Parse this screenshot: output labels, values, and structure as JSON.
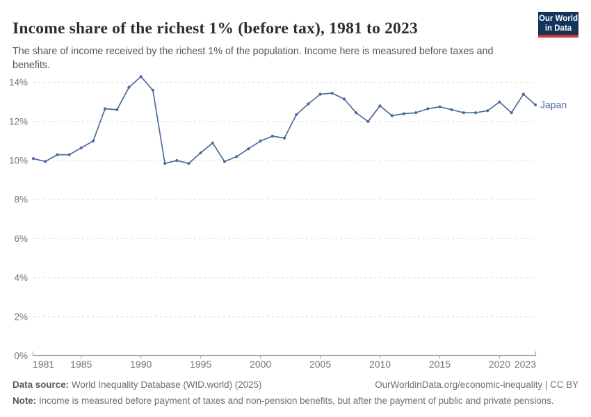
{
  "header": {
    "title": "Income share of the richest 1% (before tax), 1981 to 2023",
    "subtitle": "The share of income received by the richest 1% of the population. Income here is measured before taxes and benefits.",
    "logo": {
      "line1": "Our World",
      "line2": "in Data",
      "bg_color": "#12355b",
      "bar_color": "#d7312e"
    }
  },
  "chart_data": {
    "type": "line",
    "title": "Income share of the richest 1% (before tax), 1981 to 2023",
    "xlabel": "",
    "ylabel": "",
    "xlim": [
      1981,
      2023
    ],
    "ylim": [
      0,
      14
    ],
    "grid": "horizontal-dashed",
    "legend": "end-of-line-label",
    "x_ticks": [
      1981,
      1985,
      1990,
      1995,
      2000,
      2005,
      2010,
      2015,
      2020,
      2023
    ],
    "y_ticks": [
      0,
      2,
      4,
      6,
      8,
      10,
      12,
      14
    ],
    "y_tick_labels": [
      "0%",
      "2%",
      "4%",
      "6%",
      "8%",
      "10%",
      "12%",
      "14%"
    ],
    "series": [
      {
        "name": "Japan",
        "color": "#4c6a9c",
        "x": [
          1981,
          1982,
          1983,
          1984,
          1985,
          1986,
          1987,
          1988,
          1989,
          1990,
          1991,
          1992,
          1993,
          1994,
          1995,
          1996,
          1997,
          1998,
          1999,
          2000,
          2001,
          2002,
          2003,
          2004,
          2005,
          2006,
          2007,
          2008,
          2009,
          2010,
          2011,
          2012,
          2013,
          2014,
          2015,
          2016,
          2017,
          2018,
          2019,
          2020,
          2021,
          2022,
          2023
        ],
        "values": [
          10.1,
          9.95,
          10.3,
          10.3,
          10.65,
          11.0,
          12.65,
          12.6,
          13.75,
          14.3,
          13.6,
          9.85,
          10.0,
          9.85,
          10.4,
          10.9,
          9.95,
          10.2,
          10.6,
          11.0,
          11.25,
          11.15,
          12.35,
          12.9,
          13.4,
          13.45,
          13.15,
          12.45,
          12.0,
          12.8,
          12.3,
          12.4,
          12.45,
          12.65,
          12.75,
          12.6,
          12.45,
          12.45,
          12.55,
          13.0,
          12.45,
          13.4,
          12.85
        ]
      }
    ],
    "colors": {
      "grid": "#dcdcdc",
      "axis": "#a6a6a6",
      "tick_label": "#757575"
    }
  },
  "footer": {
    "data_source_label": "Data source:",
    "data_source": "World Inequality Database (WID.world) (2025)",
    "link": "OurWorldinData.org/economic-inequality | CC BY",
    "note_label": "Note:",
    "note": "Income is measured before payment of taxes and non-pension benefits, but after the payment of public and private pensions."
  }
}
